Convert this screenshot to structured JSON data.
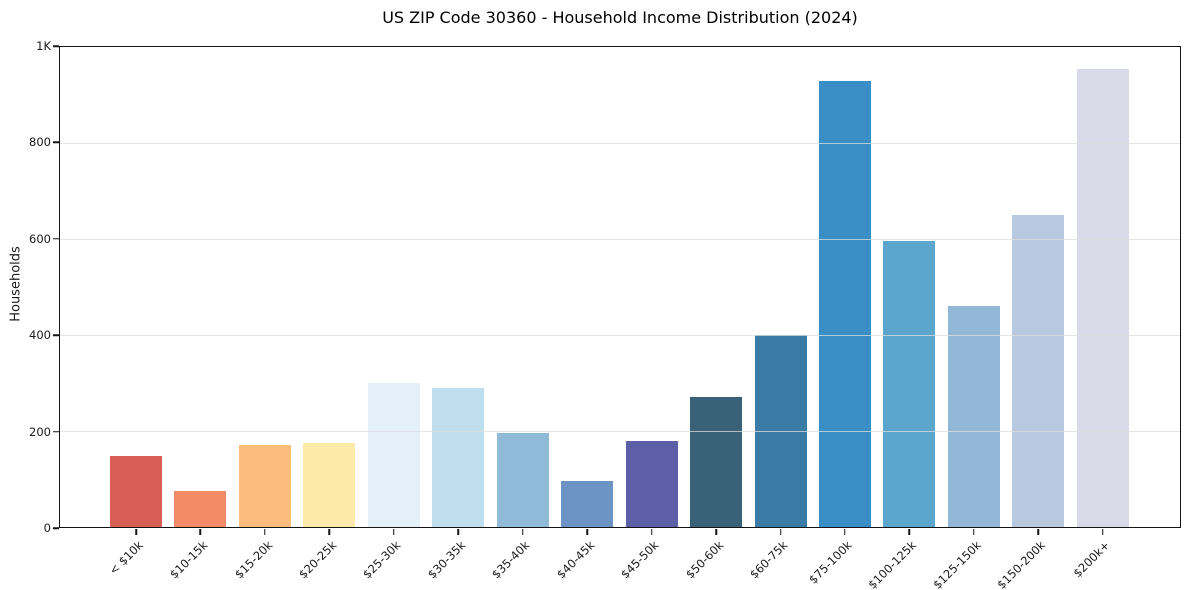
{
  "chart_data": {
    "type": "bar",
    "title": "US ZIP Code 30360 - Household Income Distribution (2024)",
    "xlabel": "",
    "ylabel": "Households",
    "categories": [
      "< $10k",
      "$10-15k",
      "$15-20k",
      "$20-25k",
      "$25-30k",
      "$30-35k",
      "$35-40k",
      "$40-45k",
      "$45-50k",
      "$50-60k",
      "$60-75k",
      "$75-100k",
      "$100-125k",
      "$125-150k",
      "$150-200k",
      "$200k+"
    ],
    "values": [
      148,
      75,
      170,
      175,
      300,
      290,
      195,
      95,
      180,
      270,
      400,
      930,
      595,
      460,
      650,
      955
    ],
    "bar_colors": [
      "#d75f55",
      "#f38a68",
      "#fdbb7c",
      "#fde9a9",
      "#e3f0f7",
      "#c0dfee",
      "#8fbad8",
      "#6b93c4",
      "#5c5ea8",
      "#396279",
      "#3a7ca5",
      "#3a8ec6",
      "#5ca5cd",
      "#93b7d6",
      "#b7c8df",
      "#d8dae8"
    ],
    "ylim": [
      0,
      1000
    ],
    "yticks": [
      {
        "label": "0",
        "value": 0
      },
      {
        "label": "200",
        "value": 200
      },
      {
        "label": "400",
        "value": 400
      },
      {
        "label": "600",
        "value": 600
      },
      {
        "label": "800",
        "value": 800
      },
      {
        "label": "1K",
        "value": 1000
      }
    ],
    "grid": "horizontal",
    "legend": "none",
    "colors": {
      "grid": "#dedede",
      "spine": "#141414",
      "text": "#1a1a1a",
      "background": "#ffffff"
    }
  }
}
